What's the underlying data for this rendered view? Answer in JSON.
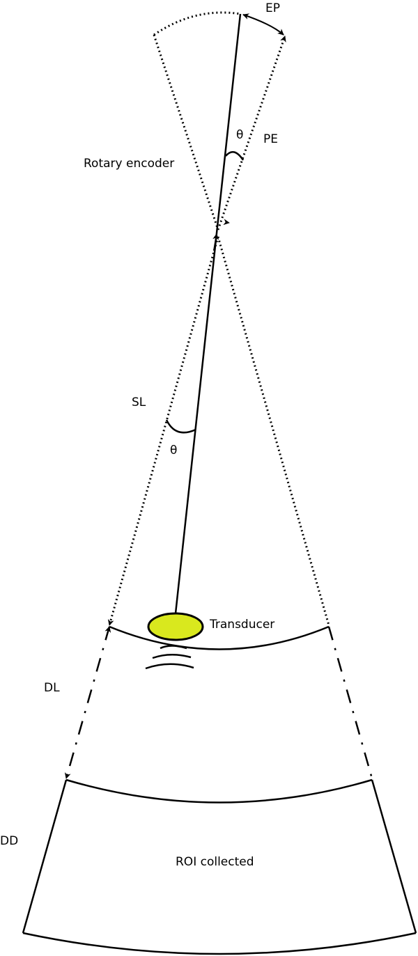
{
  "labels": {
    "ep": "EP",
    "theta_top": "θ",
    "pe": "PE",
    "rotary_encoder": "Rotary encoder",
    "sl": "SL",
    "theta_mid": "θ",
    "transducer": "Transducer",
    "dl": "DL",
    "dd": "DD",
    "roi": "ROI collected"
  },
  "colors": {
    "transducer_fill": "#d9e81e",
    "stroke": "#000000"
  }
}
